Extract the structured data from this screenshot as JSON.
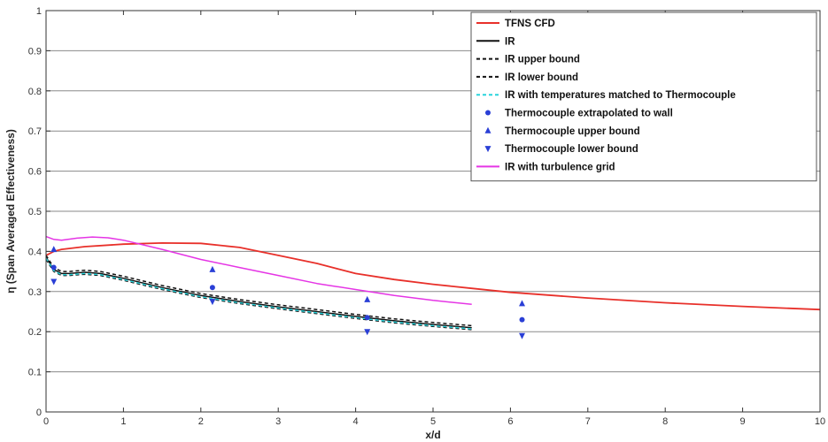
{
  "chart_data": {
    "type": "line",
    "xlabel": "x/d",
    "ylabel": "η (Span Averaged Effectiveness)",
    "xlim": [
      0,
      10
    ],
    "ylim": [
      0,
      1
    ],
    "x_ticks": [
      "0",
      "1",
      "2",
      "3",
      "4",
      "5",
      "6",
      "7",
      "8",
      "9",
      "10"
    ],
    "y_ticks": [
      "0",
      "0.1",
      "0.2",
      "0.3",
      "0.4",
      "0.5",
      "0.6",
      "0.7",
      "0.8",
      "0.9",
      "1"
    ],
    "grid": "horizontal",
    "legend_position": "top-right",
    "series": [
      {
        "name": "TFNS CFD",
        "color": "#e8302a",
        "style": "solid",
        "x": [
          0,
          0.1,
          0.2,
          0.5,
          1.0,
          1.5,
          2.0,
          2.5,
          3.0,
          3.5,
          4.0,
          4.5,
          5.0,
          5.5,
          6.0,
          7.0,
          8.0,
          9.0,
          10.0
        ],
        "y": [
          0.39,
          0.4,
          0.405,
          0.412,
          0.418,
          0.421,
          0.42,
          0.41,
          0.39,
          0.37,
          0.345,
          0.33,
          0.318,
          0.308,
          0.298,
          0.284,
          0.272,
          0.263,
          0.255
        ]
      },
      {
        "name": "IR",
        "color": "#111111",
        "style": "solid",
        "x": [
          0,
          0.05,
          0.1,
          0.2,
          0.3,
          0.5,
          0.7,
          1.0,
          1.5,
          2.0,
          2.5,
          3.0,
          3.5,
          4.0,
          4.5,
          5.0,
          5.5
        ],
        "y": [
          0.385,
          0.37,
          0.355,
          0.345,
          0.345,
          0.348,
          0.345,
          0.333,
          0.31,
          0.29,
          0.275,
          0.262,
          0.25,
          0.238,
          0.227,
          0.218,
          0.21
        ]
      },
      {
        "name": "IR upper bound",
        "color": "#111111",
        "style": "dashed",
        "x": [
          0,
          0.05,
          0.1,
          0.2,
          0.3,
          0.5,
          0.7,
          1.0,
          1.5,
          2.0,
          2.5,
          3.0,
          3.5,
          4.0,
          4.5,
          5.0,
          5.5
        ],
        "y": [
          0.39,
          0.375,
          0.36,
          0.35,
          0.35,
          0.353,
          0.35,
          0.338,
          0.315,
          0.295,
          0.28,
          0.267,
          0.255,
          0.243,
          0.232,
          0.223,
          0.215
        ]
      },
      {
        "name": "IR lower bound",
        "color": "#111111",
        "style": "dashed",
        "x": [
          0,
          0.05,
          0.1,
          0.2,
          0.3,
          0.5,
          0.7,
          1.0,
          1.5,
          2.0,
          2.5,
          3.0,
          3.5,
          4.0,
          4.5,
          5.0,
          5.5
        ],
        "y": [
          0.38,
          0.365,
          0.35,
          0.34,
          0.34,
          0.343,
          0.34,
          0.328,
          0.305,
          0.285,
          0.27,
          0.257,
          0.245,
          0.233,
          0.222,
          0.213,
          0.205
        ]
      },
      {
        "name": "IR with temperatures matched to Thermocouple",
        "color": "#29d4dc",
        "style": "dashed",
        "x": [
          0,
          0.05,
          0.1,
          0.2,
          0.3,
          0.5,
          0.7,
          1.0,
          1.5,
          2.0,
          2.5,
          3.0,
          3.5,
          4.0,
          4.5,
          5.0,
          5.5
        ],
        "y": [
          0.383,
          0.368,
          0.352,
          0.342,
          0.342,
          0.345,
          0.342,
          0.33,
          0.307,
          0.287,
          0.272,
          0.259,
          0.247,
          0.235,
          0.224,
          0.215,
          0.207
        ]
      },
      {
        "name": "IR with turbulence grid",
        "color": "#e535e5",
        "style": "solid",
        "x": [
          0,
          0.1,
          0.2,
          0.4,
          0.6,
          0.8,
          1.0,
          1.5,
          2.0,
          2.5,
          3.0,
          3.5,
          4.0,
          4.5,
          5.0,
          5.5
        ],
        "y": [
          0.437,
          0.43,
          0.428,
          0.433,
          0.436,
          0.434,
          0.428,
          0.405,
          0.38,
          0.36,
          0.34,
          0.32,
          0.305,
          0.29,
          0.278,
          0.268
        ]
      },
      {
        "name": "Thermocouple extrapolated to wall",
        "color": "#2a3fd6",
        "marker": "circle",
        "x": [
          0.1,
          2.15,
          4.15,
          6.15
        ],
        "y": [
          0.36,
          0.31,
          0.235,
          0.23
        ]
      },
      {
        "name": "Thermocouple upper bound",
        "color": "#2a3fd6",
        "marker": "triangle-up",
        "x": [
          0.1,
          2.15,
          4.15,
          6.15
        ],
        "y": [
          0.405,
          0.355,
          0.28,
          0.27
        ]
      },
      {
        "name": "Thermocouple lower bound",
        "color": "#2a3fd6",
        "marker": "triangle-down",
        "x": [
          0.1,
          2.15,
          4.15,
          6.15
        ],
        "y": [
          0.325,
          0.275,
          0.2,
          0.19
        ]
      }
    ],
    "legend": [
      {
        "label": "TFNS CFD",
        "color": "#e8302a",
        "kind": "line-solid"
      },
      {
        "label": "IR",
        "color": "#111111",
        "kind": "line-solid"
      },
      {
        "label": "IR upper bound",
        "color": "#111111",
        "kind": "line-dashed"
      },
      {
        "label": "IR lower bound",
        "color": "#111111",
        "kind": "line-dashed"
      },
      {
        "label": "IR with temperatures matched to Thermocouple",
        "color": "#29d4dc",
        "kind": "line-dashed"
      },
      {
        "label": "Thermocouple extrapolated to wall",
        "color": "#2a3fd6",
        "kind": "circle"
      },
      {
        "label": "Thermocouple upper bound",
        "color": "#2a3fd6",
        "kind": "triangle-up"
      },
      {
        "label": "Thermocouple lower bound",
        "color": "#2a3fd6",
        "kind": "triangle-down"
      },
      {
        "label": "IR with turbulence grid",
        "color": "#e535e5",
        "kind": "line-solid"
      }
    ]
  }
}
